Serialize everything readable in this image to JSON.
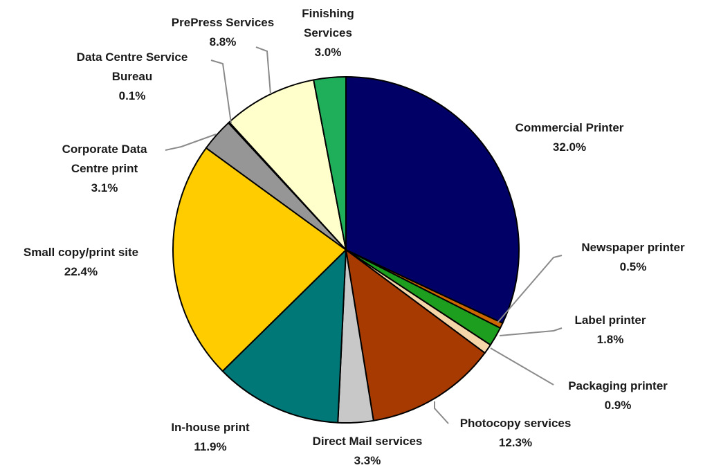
{
  "chart_data": {
    "type": "pie",
    "title": "",
    "slices": [
      {
        "label": [
          "Commercial Printer"
        ],
        "pct_text": "32.0%",
        "value": 32.0,
        "color": "#000066"
      },
      {
        "label": [
          "Newspaper printer"
        ],
        "pct_text": "0.5%",
        "value": 0.5,
        "color": "#cc6600"
      },
      {
        "label": [
          "Label printer"
        ],
        "pct_text": "1.8%",
        "value": 1.8,
        "color": "#1e9e1e"
      },
      {
        "label": [
          "Packaging printer"
        ],
        "pct_text": "0.9%",
        "value": 0.9,
        "color": "#f5d6a8"
      },
      {
        "label": [
          "Photocopy services"
        ],
        "pct_text": "12.3%",
        "value": 12.3,
        "color": "#a63a00"
      },
      {
        "label": [
          "Direct Mail services"
        ],
        "pct_text": "3.3%",
        "value": 3.3,
        "color": "#c8c8c8"
      },
      {
        "label": [
          "In-house print"
        ],
        "pct_text": "11.9%",
        "value": 11.9,
        "color": "#007878"
      },
      {
        "label": [
          "Small copy/print site"
        ],
        "pct_text": "22.4%",
        "value": 22.4,
        "color": "#ffcc00"
      },
      {
        "label": [
          "Corporate Data",
          "Centre print"
        ],
        "pct_text": "3.1%",
        "value": 3.1,
        "color": "#969696"
      },
      {
        "label": [
          "Data Centre Service",
          "Bureau"
        ],
        "pct_text": "0.1%",
        "value": 0.1,
        "color": "#ffffff"
      },
      {
        "label": [
          "PrePress Services"
        ],
        "pct_text": "8.8%",
        "value": 8.8,
        "color": "#ffffcc"
      },
      {
        "label": [
          "Finishing",
          "Services"
        ],
        "pct_text": "3.0%",
        "value": 3.0,
        "color": "#1fae5a"
      }
    ]
  }
}
